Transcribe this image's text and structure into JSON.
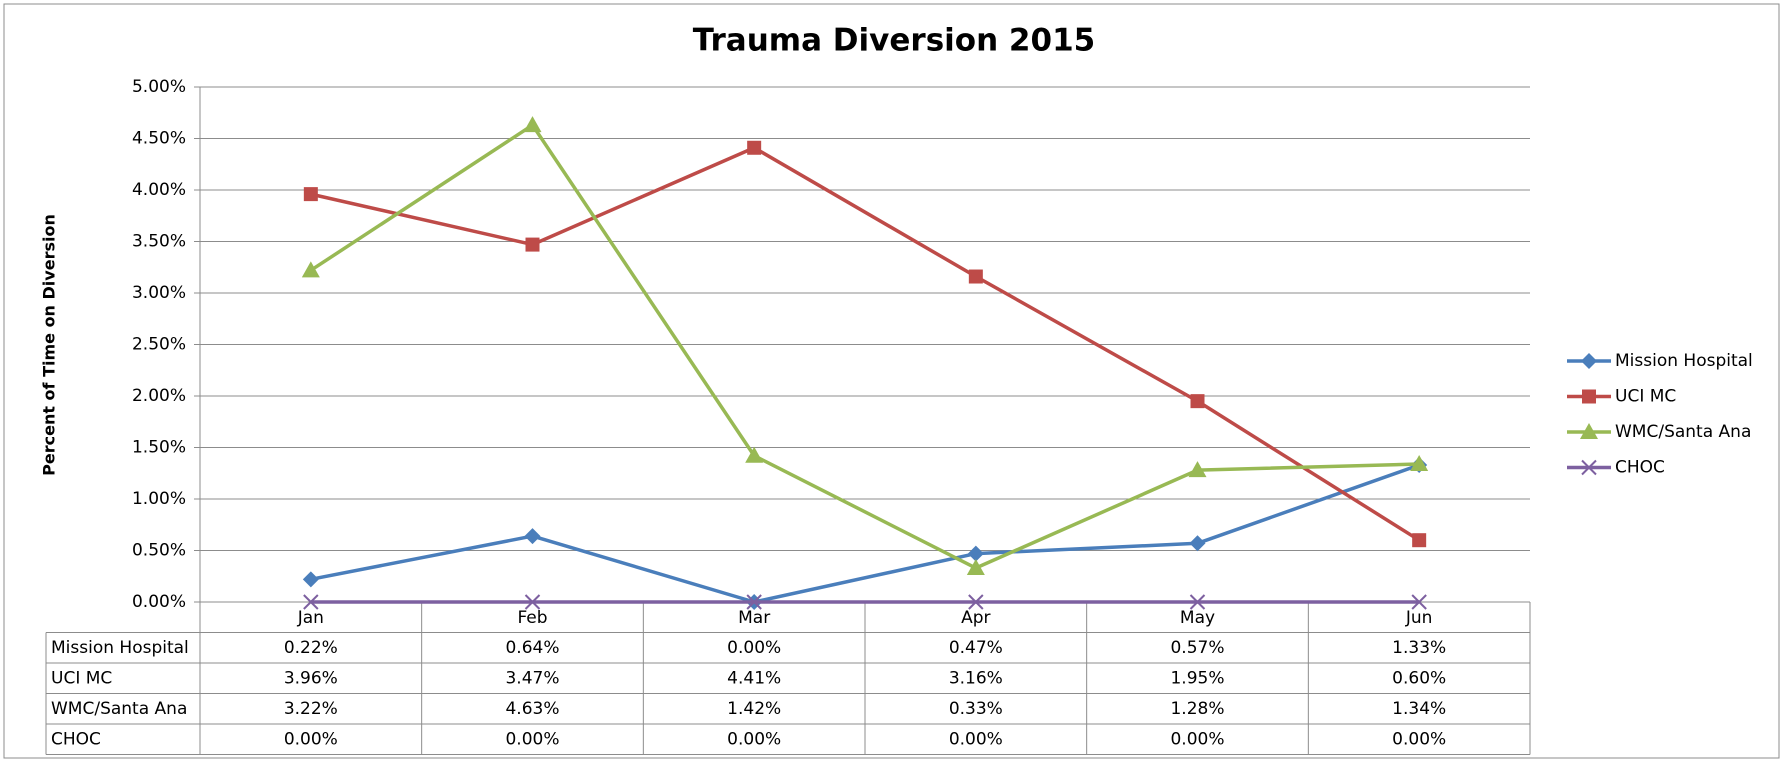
{
  "chart_data": {
    "type": "line",
    "title": "Trauma Diversion 2015",
    "y_label": "Percent of Time on Diversion",
    "categories": [
      "Jan",
      "Feb",
      "Mar",
      "Apr",
      "May",
      "Jun"
    ],
    "ylim": [
      0,
      5
    ],
    "yticks": [
      {
        "value": 0,
        "label": "0.00%"
      },
      {
        "value": 0.5,
        "label": "0.50%"
      },
      {
        "value": 1,
        "label": "1.00%"
      },
      {
        "value": 1.5,
        "label": "1.50%"
      },
      {
        "value": 2,
        "label": "2.00%"
      },
      {
        "value": 2.5,
        "label": "2.50%"
      },
      {
        "value": 3,
        "label": "3.00%"
      },
      {
        "value": 3.5,
        "label": "3.50%"
      },
      {
        "value": 4,
        "label": "4.00%"
      },
      {
        "value": 4.5,
        "label": "4.50%"
      },
      {
        "value": 5,
        "label": "5.00%"
      }
    ],
    "grid": true,
    "legend": "right",
    "series": [
      {
        "name": "Mission Hospital",
        "color": "#4a7ebb",
        "marker": "diamond",
        "values": [
          0.22,
          0.64,
          0.0,
          0.47,
          0.57,
          1.33
        ],
        "value_labels": [
          "0.22%",
          "0.64%",
          "0.00%",
          "0.47%",
          "0.57%",
          "1.33%"
        ]
      },
      {
        "name": "UCI MC",
        "color": "#be4b48",
        "marker": "square",
        "values": [
          3.96,
          3.47,
          4.41,
          3.16,
          1.95,
          0.6
        ],
        "value_labels": [
          "3.96%",
          "3.47%",
          "4.41%",
          "3.16%",
          "1.95%",
          "0.60%"
        ]
      },
      {
        "name": "WMC/Santa Ana",
        "color": "#98b954",
        "marker": "triangle",
        "values": [
          3.22,
          4.63,
          1.42,
          0.33,
          1.28,
          1.34
        ],
        "value_labels": [
          "3.22%",
          "4.63%",
          "1.42%",
          "0.33%",
          "1.28%",
          "1.34%"
        ]
      },
      {
        "name": "CHOC",
        "color": "#7d60a0",
        "marker": "x",
        "values": [
          0.0,
          0.0,
          0.0,
          0.0,
          0.0,
          0.0
        ],
        "value_labels": [
          "0.00%",
          "0.00%",
          "0.00%",
          "0.00%",
          "0.00%",
          "0.00%"
        ]
      }
    ]
  }
}
